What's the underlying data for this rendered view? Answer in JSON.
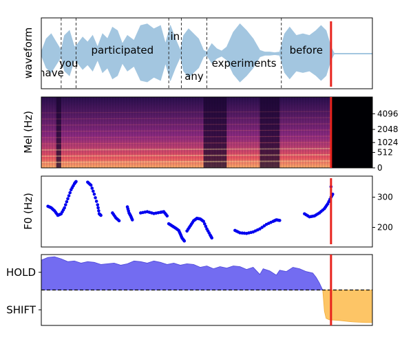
{
  "chart_data": [
    {
      "type": "line",
      "name": "waveform-panel",
      "ylabel": "waveform",
      "x_domain": [
        0,
        1
      ],
      "words": [
        {
          "text": "have",
          "start": 0.0,
          "end": 0.06
        },
        {
          "text": "you",
          "start": 0.06,
          "end": 0.105
        },
        {
          "text": "participated",
          "start": 0.105,
          "end": 0.385
        },
        {
          "text": "in",
          "start": 0.385,
          "end": 0.423
        },
        {
          "text": "any",
          "start": 0.423,
          "end": 0.5
        },
        {
          "text": "experiments",
          "start": 0.5,
          "end": 0.725
        },
        {
          "text": "before",
          "start": 0.725,
          "end": 0.875
        }
      ],
      "word_boundaries": [
        0.06,
        0.105,
        0.385,
        0.423,
        0.5,
        0.725
      ],
      "envelope": [
        [
          0.0,
          0.05
        ],
        [
          0.015,
          0.45
        ],
        [
          0.03,
          0.6
        ],
        [
          0.045,
          0.35
        ],
        [
          0.06,
          0.1
        ],
        [
          0.07,
          0.55
        ],
        [
          0.085,
          0.7
        ],
        [
          0.1,
          0.2
        ],
        [
          0.11,
          0.3
        ],
        [
          0.125,
          0.5
        ],
        [
          0.14,
          0.35
        ],
        [
          0.155,
          0.55
        ],
        [
          0.17,
          0.2
        ],
        [
          0.185,
          0.6
        ],
        [
          0.2,
          0.45
        ],
        [
          0.215,
          0.8
        ],
        [
          0.23,
          0.7
        ],
        [
          0.245,
          0.3
        ],
        [
          0.26,
          0.55
        ],
        [
          0.28,
          0.4
        ],
        [
          0.3,
          0.85
        ],
        [
          0.32,
          0.9
        ],
        [
          0.34,
          0.75
        ],
        [
          0.36,
          0.85
        ],
        [
          0.375,
          0.3
        ],
        [
          0.39,
          0.85
        ],
        [
          0.405,
          0.45
        ],
        [
          0.42,
          0.1
        ],
        [
          0.43,
          0.55
        ],
        [
          0.445,
          0.75
        ],
        [
          0.46,
          0.6
        ],
        [
          0.475,
          0.45
        ],
        [
          0.49,
          0.1
        ],
        [
          0.5,
          0.05
        ],
        [
          0.515,
          0.3
        ],
        [
          0.53,
          0.15
        ],
        [
          0.545,
          0.08
        ],
        [
          0.56,
          0.2
        ],
        [
          0.58,
          0.65
        ],
        [
          0.6,
          0.9
        ],
        [
          0.62,
          0.7
        ],
        [
          0.64,
          0.45
        ],
        [
          0.66,
          0.1
        ],
        [
          0.675,
          0.05
        ],
        [
          0.69,
          0.05
        ],
        [
          0.705,
          0.03
        ],
        [
          0.72,
          0.05
        ],
        [
          0.735,
          0.6
        ],
        [
          0.75,
          0.8
        ],
        [
          0.77,
          0.55
        ],
        [
          0.79,
          0.6
        ],
        [
          0.81,
          0.55
        ],
        [
          0.83,
          0.7
        ],
        [
          0.845,
          0.85
        ],
        [
          0.86,
          0.7
        ],
        [
          0.875,
          0.2
        ],
        [
          0.885,
          0.0
        ],
        [
          1.0,
          0.0
        ]
      ]
    },
    {
      "type": "heatmap",
      "name": "mel-panel",
      "ylabel": "Mel (Hz)",
      "y_ticks": [
        0,
        512,
        1024,
        2048,
        4096
      ],
      "x_domain": [
        0,
        1
      ],
      "speech_end": 0.875
    },
    {
      "type": "scatter",
      "name": "f0-panel",
      "ylabel": "F0 (Hz)",
      "ylim": [
        135,
        370
      ],
      "y_ticks": [
        200,
        300
      ],
      "x_domain": [
        0,
        1
      ],
      "segments": [
        [
          [
            0.02,
            270
          ],
          [
            0.03,
            265
          ],
          [
            0.04,
            255
          ],
          [
            0.05,
            240
          ],
          [
            0.06,
            245
          ],
          [
            0.07,
            265
          ],
          [
            0.08,
            295
          ],
          [
            0.09,
            325
          ],
          [
            0.1,
            345
          ],
          [
            0.105,
            352
          ]
        ],
        [
          [
            0.14,
            350
          ],
          [
            0.15,
            340
          ],
          [
            0.16,
            310
          ],
          [
            0.17,
            275
          ],
          [
            0.175,
            245
          ],
          [
            0.18,
            240
          ]
        ],
        [
          [
            0.215,
            248
          ],
          [
            0.225,
            232
          ],
          [
            0.235,
            222
          ]
        ],
        [
          [
            0.26,
            268
          ],
          [
            0.265,
            248
          ],
          [
            0.27,
            238
          ],
          [
            0.275,
            225
          ]
        ],
        [
          [
            0.3,
            248
          ],
          [
            0.32,
            252
          ],
          [
            0.34,
            246
          ],
          [
            0.36,
            250
          ],
          [
            0.37,
            252
          ],
          [
            0.38,
            238
          ]
        ],
        [
          [
            0.385,
            212
          ],
          [
            0.395,
            205
          ],
          [
            0.405,
            198
          ],
          [
            0.415,
            190
          ],
          [
            0.42,
            178
          ],
          [
            0.425,
            165
          ],
          [
            0.432,
            155
          ]
        ],
        [
          [
            0.44,
            188
          ],
          [
            0.45,
            205
          ],
          [
            0.46,
            222
          ],
          [
            0.47,
            230
          ],
          [
            0.48,
            228
          ],
          [
            0.49,
            220
          ],
          [
            0.5,
            195
          ],
          [
            0.51,
            175
          ],
          [
            0.515,
            165
          ]
        ],
        [
          [
            0.585,
            190
          ],
          [
            0.6,
            182
          ],
          [
            0.62,
            180
          ],
          [
            0.64,
            185
          ],
          [
            0.66,
            195
          ],
          [
            0.68,
            210
          ],
          [
            0.7,
            220
          ],
          [
            0.71,
            225
          ],
          [
            0.72,
            223
          ]
        ],
        [
          [
            0.795,
            245
          ],
          [
            0.81,
            235
          ],
          [
            0.825,
            238
          ],
          [
            0.84,
            248
          ],
          [
            0.855,
            262
          ],
          [
            0.865,
            278
          ],
          [
            0.875,
            300
          ],
          [
            0.88,
            310
          ]
        ],
        [
          [
            0.875,
            335
          ]
        ]
      ]
    },
    {
      "type": "area",
      "name": "turn-panel",
      "y_ticks": [
        "HOLD",
        "SHIFT"
      ],
      "x_domain": [
        0,
        1
      ],
      "threshold": 0.5,
      "hold_color": "#6b64f0",
      "shift_color": "#fdc566",
      "hold_curve": [
        [
          0.0,
          0.92
        ],
        [
          0.02,
          0.96
        ],
        [
          0.04,
          0.97
        ],
        [
          0.06,
          0.94
        ],
        [
          0.08,
          0.9
        ],
        [
          0.1,
          0.91
        ],
        [
          0.12,
          0.88
        ],
        [
          0.14,
          0.9
        ],
        [
          0.16,
          0.89
        ],
        [
          0.18,
          0.86
        ],
        [
          0.2,
          0.87
        ],
        [
          0.22,
          0.88
        ],
        [
          0.24,
          0.85
        ],
        [
          0.26,
          0.87
        ],
        [
          0.28,
          0.91
        ],
        [
          0.3,
          0.9
        ],
        [
          0.32,
          0.88
        ],
        [
          0.34,
          0.91
        ],
        [
          0.36,
          0.89
        ],
        [
          0.38,
          0.86
        ],
        [
          0.4,
          0.88
        ],
        [
          0.42,
          0.85
        ],
        [
          0.44,
          0.87
        ],
        [
          0.46,
          0.86
        ],
        [
          0.48,
          0.82
        ],
        [
          0.5,
          0.84
        ],
        [
          0.52,
          0.8
        ],
        [
          0.54,
          0.83
        ],
        [
          0.56,
          0.81
        ],
        [
          0.58,
          0.84
        ],
        [
          0.6,
          0.83
        ],
        [
          0.62,
          0.79
        ],
        [
          0.64,
          0.82
        ],
        [
          0.66,
          0.72
        ],
        [
          0.67,
          0.8
        ],
        [
          0.69,
          0.77
        ],
        [
          0.71,
          0.71
        ],
        [
          0.72,
          0.78
        ],
        [
          0.74,
          0.76
        ],
        [
          0.76,
          0.82
        ],
        [
          0.78,
          0.8
        ],
        [
          0.8,
          0.76
        ],
        [
          0.82,
          0.74
        ],
        [
          0.83,
          0.68
        ],
        [
          0.84,
          0.6
        ],
        [
          0.85,
          0.5
        ]
      ],
      "shift_curve": [
        [
          0.85,
          0.5
        ],
        [
          0.855,
          0.2
        ],
        [
          0.86,
          0.1
        ],
        [
          0.87,
          0.08
        ],
        [
          0.9,
          0.07
        ],
        [
          0.94,
          0.05
        ],
        [
          0.98,
          0.04
        ],
        [
          1.0,
          0.04
        ]
      ]
    }
  ],
  "cursor": {
    "x": 0.875,
    "color": "#e8231c"
  }
}
